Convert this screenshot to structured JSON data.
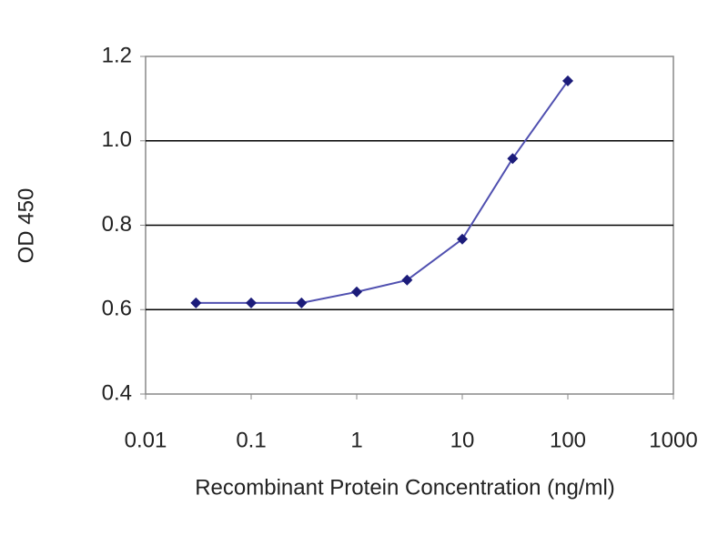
{
  "chart_data": {
    "type": "line",
    "xlabel": "Recombinant Protein Concentration (ng/ml)",
    "ylabel": "OD 450",
    "xscale": "log",
    "x": [
      0.03,
      0.1,
      0.3,
      1,
      3,
      10,
      30,
      100
    ],
    "series": [
      {
        "color": "#1c1c7a",
        "values": [
          0.616,
          0.616,
          0.616,
          0.642,
          0.67,
          0.767,
          0.958,
          1.142
        ]
      }
    ],
    "xlim": [
      0.01,
      1000
    ],
    "xticks": [
      0.01,
      0.1,
      1,
      10,
      100,
      1000
    ],
    "ylim": [
      0.4,
      1.2
    ],
    "yticks": [
      0.4,
      0.6,
      0.8,
      {
        "value": 1.0,
        "label": "1.0"
      },
      1.2
    ],
    "grid": true
  }
}
